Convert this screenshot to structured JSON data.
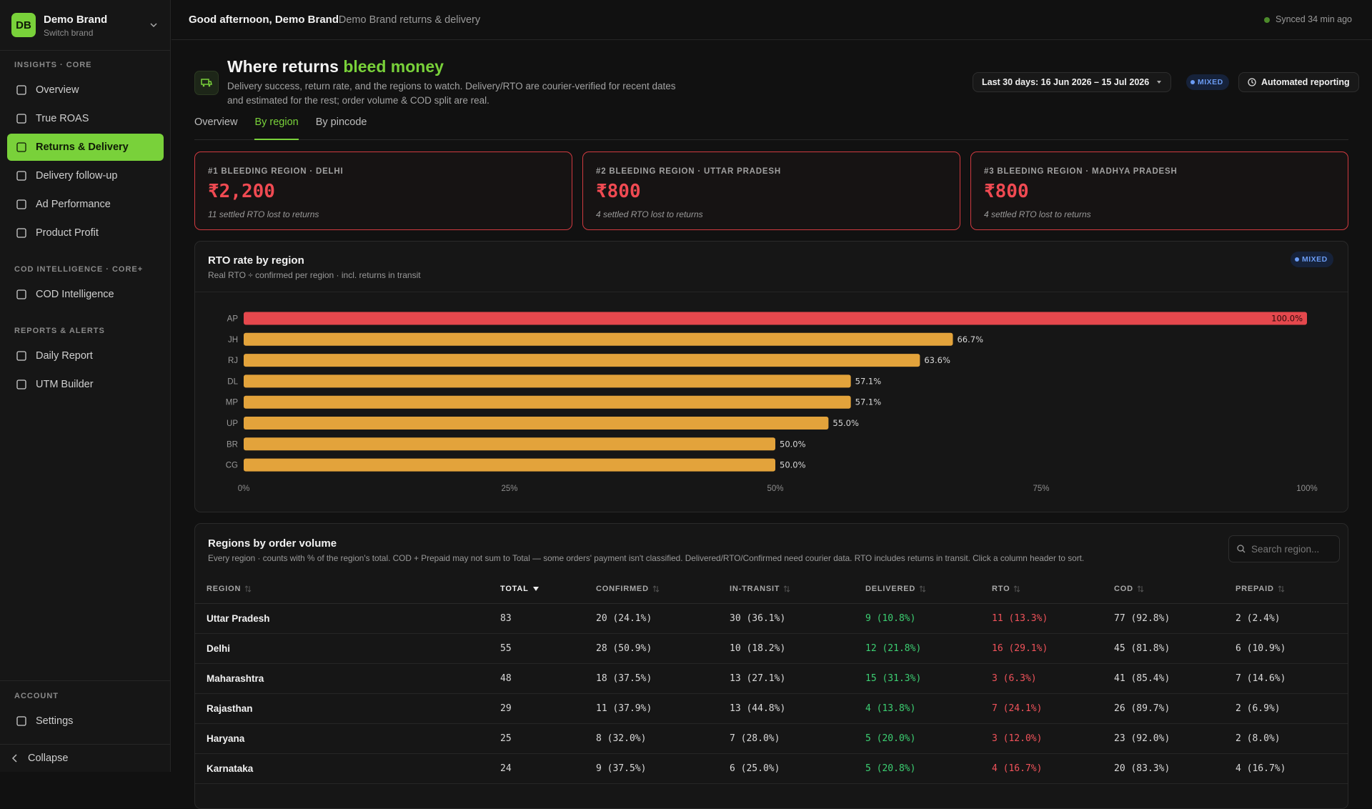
{
  "sidebar": {
    "brand": {
      "initials": "DB",
      "name": "Demo Brand",
      "subtitle": "Switch brand"
    },
    "sections": [
      {
        "title": "INSIGHTS · CORE",
        "items": [
          {
            "label": "Overview"
          },
          {
            "label": "True ROAS"
          },
          {
            "label": "Returns & Delivery",
            "active": true
          },
          {
            "label": "Delivery follow-up"
          },
          {
            "label": "Ad Performance"
          },
          {
            "label": "Product Profit"
          }
        ]
      },
      {
        "title": "COD INTELLIGENCE · CORE+",
        "items": [
          {
            "label": "COD Intelligence"
          }
        ]
      },
      {
        "title": "REPORTS & ALERTS",
        "items": [
          {
            "label": "Daily Report"
          },
          {
            "label": "UTM Builder"
          }
        ]
      }
    ],
    "account": {
      "title": "ACCOUNT",
      "items": [
        {
          "label": "Settings"
        }
      ]
    },
    "collapse": "Collapse"
  },
  "topbar": {
    "greeting": "Good afternoon, Demo Brand",
    "context": "· Demo Brand returns & delivery",
    "sync": "Synced 34 min ago"
  },
  "header": {
    "title": "Where returns",
    "title_highlight": "bleed money",
    "description": "Delivery success, return rate, and the regions to watch. Delivery/RTO are courier-verified for recent dates and estimated for the rest; order volume & COD split are real.",
    "date_range": "Last 30 days: 16 Jun 2026 – 15 Jul 2026",
    "badge": "MIXED",
    "button": "Automated reporting"
  },
  "tabs": {
    "items": [
      "Overview",
      "By region",
      "By pincode"
    ],
    "active": 1
  },
  "cards": [
    {
      "label": "#1 BLEEDING REGION · DELHI",
      "amount": "₹2,200",
      "note": "11 settled RTO lost to returns"
    },
    {
      "label": "#2 BLEEDING REGION · UTTAR PRADESH",
      "amount": "₹800",
      "note": "4 settled RTO lost to returns"
    },
    {
      "label": "#3 BLEEDING REGION · MADHYA PRADESH",
      "amount": "₹800",
      "note": "4 settled RTO lost to returns"
    }
  ],
  "chart_data": {
    "type": "bar",
    "orientation": "horizontal",
    "title": "RTO rate by region",
    "subtitle": "Real RTO ÷ confirmed per region · incl. returns in transit",
    "badge": "MIXED",
    "categories": [
      "AP",
      "JH",
      "RJ",
      "DL",
      "MP",
      "UP",
      "BR",
      "CG"
    ],
    "values": [
      100,
      66.7,
      63.6,
      57.1,
      57.1,
      55,
      50,
      50
    ],
    "value_labels": [
      "100.0%",
      "66.7%",
      "63.6%",
      "57.1%",
      "57.1%",
      "55.0%",
      "50.0%",
      "50.0%"
    ],
    "colors": [
      "#e5484d",
      "#e3a33b",
      "#e3a33b",
      "#e3a33b",
      "#e3a33b",
      "#e3a33b",
      "#e3a33b",
      "#e3a33b"
    ],
    "xlim": [
      0,
      100
    ],
    "xticks": [
      {
        "value": 0,
        "label": "0%"
      },
      {
        "value": 25,
        "label": "25%"
      },
      {
        "value": 50,
        "label": "50%"
      },
      {
        "value": 75,
        "label": "75%"
      },
      {
        "value": 100,
        "label": "100%"
      }
    ],
    "grid": false
  },
  "table": {
    "title": "Regions by order volume",
    "description": "Every region · counts with % of the region's total. COD + Prepaid may not sum to Total — some orders' payment isn't classified. Delivered/RTO/Confirmed need courier data. RTO includes returns in transit. Click a column header to sort.",
    "search_placeholder": "Search region...",
    "sort_column": 1,
    "columns": [
      {
        "label": "REGION"
      },
      {
        "label": "TOTAL"
      },
      {
        "label": "CONFIRMED"
      },
      {
        "label": "IN-TRANSIT"
      },
      {
        "label": "DELIVERED",
        "color": "#3ccf72"
      },
      {
        "label": "RTO",
        "color": "#f0525a"
      },
      {
        "label": "COD"
      },
      {
        "label": "PREPAID"
      }
    ],
    "rows": [
      [
        "Uttar Pradesh",
        83,
        "20 (24.1%)",
        "30 (36.1%)",
        "9 (10.8%)",
        "11 (13.3%)",
        "77 (92.8%)",
        "2 (2.4%)"
      ],
      [
        "Delhi",
        55,
        "28 (50.9%)",
        "10 (18.2%)",
        "12 (21.8%)",
        "16 (29.1%)",
        "45 (81.8%)",
        "6 (10.9%)"
      ],
      [
        "Maharashtra",
        48,
        "18 (37.5%)",
        "13 (27.1%)",
        "15 (31.3%)",
        "3 (6.3%)",
        "41 (85.4%)",
        "7 (14.6%)"
      ],
      [
        "Rajasthan",
        29,
        "11 (37.9%)",
        "13 (44.8%)",
        "4 (13.8%)",
        "7 (24.1%)",
        "26 (89.7%)",
        "2 (6.9%)"
      ],
      [
        "Haryana",
        25,
        "8 (32.0%)",
        "7 (28.0%)",
        "5 (20.0%)",
        "3 (12.0%)",
        "23 (92.0%)",
        "2 (8.0%)"
      ],
      [
        "Karnataka",
        24,
        "9 (37.5%)",
        "6 (25.0%)",
        "5 (20.8%)",
        "4 (16.7%)",
        "20 (83.3%)",
        "4 (16.7%)"
      ]
    ]
  }
}
